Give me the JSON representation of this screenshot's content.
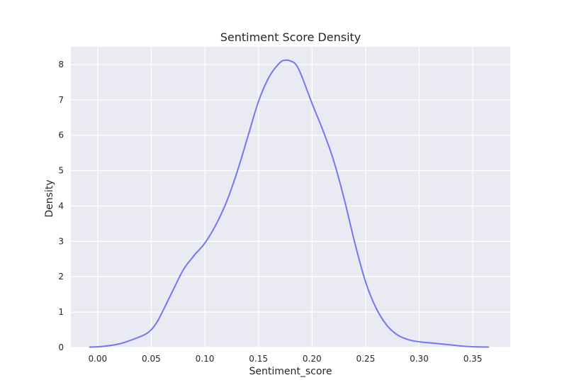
{
  "chart_data": {
    "type": "line",
    "title": "Sentiment Score Density",
    "xlabel": "Sentiment_score",
    "ylabel": "Density",
    "xlim": [
      -0.025,
      0.385
    ],
    "ylim": [
      0,
      8.5
    ],
    "grid": true,
    "background_color": "#eaeaf2",
    "grid_color": "#ffffff",
    "xticks": [
      {
        "value": 0.0,
        "label": "0.00"
      },
      {
        "value": 0.05,
        "label": "0.05"
      },
      {
        "value": 0.1,
        "label": "0.10"
      },
      {
        "value": 0.15,
        "label": "0.15"
      },
      {
        "value": 0.2,
        "label": "0.20"
      },
      {
        "value": 0.25,
        "label": "0.25"
      },
      {
        "value": 0.3,
        "label": "0.30"
      },
      {
        "value": 0.35,
        "label": "0.35"
      }
    ],
    "yticks": [
      {
        "value": 0,
        "label": "0"
      },
      {
        "value": 1,
        "label": "1"
      },
      {
        "value": 2,
        "label": "2"
      },
      {
        "value": 3,
        "label": "3"
      },
      {
        "value": 4,
        "label": "4"
      },
      {
        "value": 5,
        "label": "5"
      },
      {
        "value": 6,
        "label": "6"
      },
      {
        "value": 7,
        "label": "7"
      },
      {
        "value": 8,
        "label": "8"
      }
    ],
    "series": [
      {
        "color": "#7575f7",
        "x": [
          -0.008,
          0.005,
          0.02,
          0.035,
          0.045,
          0.05,
          0.055,
          0.06,
          0.07,
          0.08,
          0.09,
          0.1,
          0.11,
          0.12,
          0.13,
          0.14,
          0.15,
          0.16,
          0.17,
          0.175,
          0.18,
          0.185,
          0.19,
          0.2,
          0.21,
          0.22,
          0.23,
          0.24,
          0.25,
          0.26,
          0.27,
          0.28,
          0.29,
          0.3,
          0.31,
          0.32,
          0.33,
          0.34,
          0.35,
          0.365
        ],
        "y": [
          0.01,
          0.03,
          0.1,
          0.25,
          0.38,
          0.5,
          0.7,
          0.98,
          1.6,
          2.2,
          2.6,
          2.95,
          3.45,
          4.1,
          4.95,
          5.95,
          6.95,
          7.65,
          8.05,
          8.12,
          8.1,
          8.0,
          7.7,
          6.9,
          6.15,
          5.3,
          4.2,
          2.95,
          1.85,
          1.1,
          0.62,
          0.35,
          0.22,
          0.16,
          0.13,
          0.1,
          0.07,
          0.04,
          0.02,
          0.01
        ]
      }
    ]
  }
}
